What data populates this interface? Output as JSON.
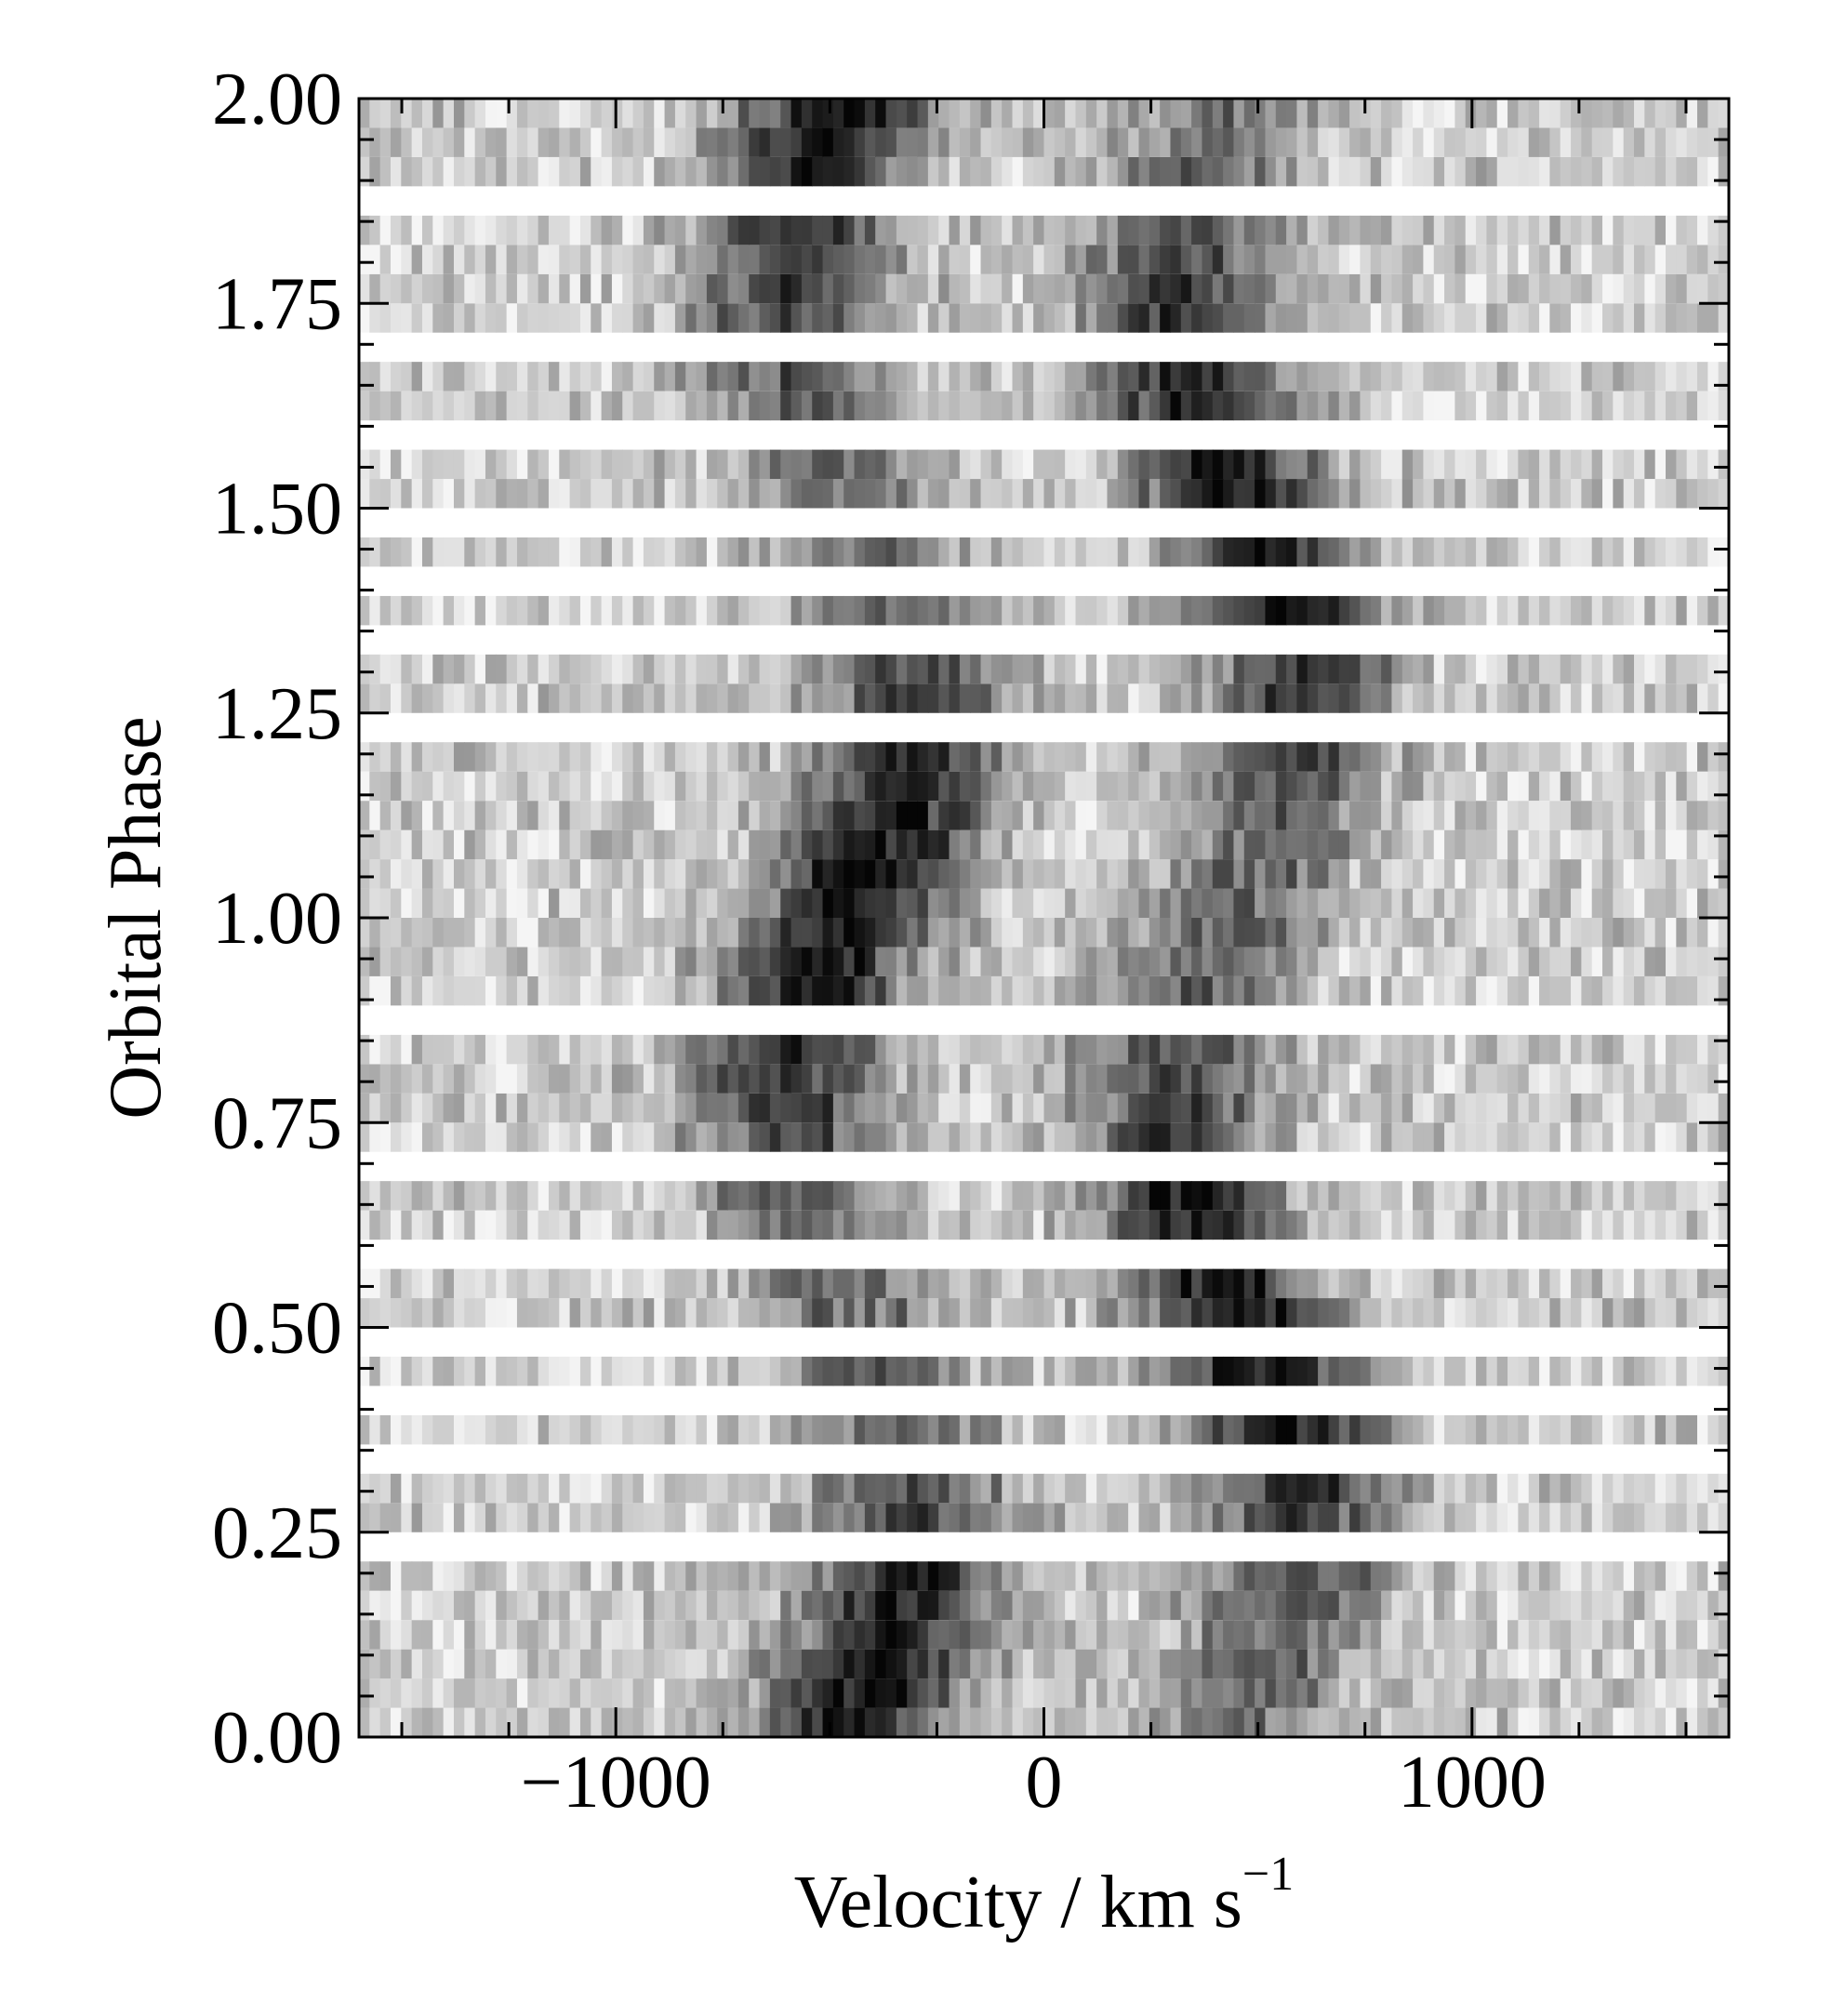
{
  "chart_data": {
    "type": "heatmap",
    "title": "",
    "xlabel": "Velocity / km s",
    "xlabel_superscript": "−1",
    "ylabel": "Orbital Phase",
    "xlim": [
      -1600,
      1600
    ],
    "ylim": [
      0.0,
      2.0
    ],
    "x_ticks": [
      -1000,
      0,
      1000
    ],
    "x_tick_labels": [
      "−1000",
      "0",
      "1000"
    ],
    "y_ticks": [
      0.0,
      0.25,
      0.5,
      0.75,
      1.0,
      1.25,
      1.5,
      1.75,
      2.0
    ],
    "y_tick_labels": [
      "0.00",
      "0.25",
      "0.50",
      "0.75",
      "1.00",
      "1.25",
      "1.50",
      "1.75",
      "2.00"
    ],
    "colormap": "grayscale (dark = strong emission)",
    "grid": false,
    "legend": "none",
    "phase_bin_width": 0.0357,
    "spectra_phases": [
      0.0,
      0.0357,
      0.0714,
      0.1071,
      0.1429,
      0.1786,
      0.25,
      0.2857,
      0.3571,
      0.4286,
      0.5,
      0.5357,
      0.6071,
      0.6429,
      0.7143,
      0.75,
      0.7857,
      0.8214,
      0.8929,
      0.9286,
      0.9643,
      1.0,
      1.0357,
      1.0714,
      1.1071,
      1.1429,
      1.1786,
      1.25,
      1.2857,
      1.3571,
      1.4286,
      1.5,
      1.5357,
      1.6071,
      1.6429,
      1.7143,
      1.75,
      1.7857,
      1.8214,
      1.8929,
      1.9286,
      1.9643
    ],
    "line_profile": {
      "description": "double-peaked emission line with S-wave modulation",
      "blue_peak_velocity": -450,
      "red_peak_velocity": 450,
      "peak_velocity_amplitude": 150,
      "half_width": 900
    }
  }
}
